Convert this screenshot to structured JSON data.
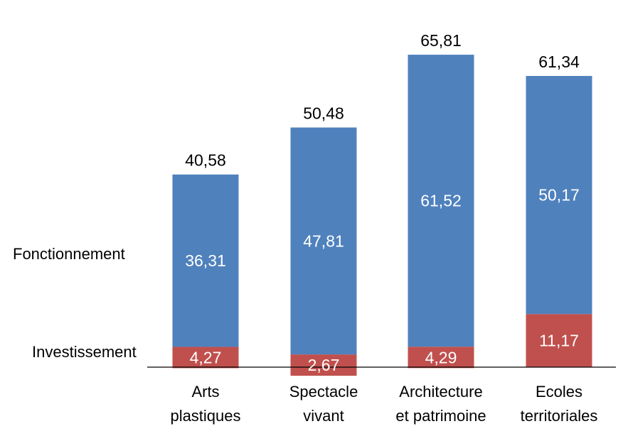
{
  "colors": {
    "fonctionnement": "#4f81bd",
    "investissement": "#c0504d",
    "axis": "#000000"
  },
  "chart_data": {
    "type": "bar",
    "stacked": true,
    "categories": [
      [
        "Arts",
        "plastiques"
      ],
      [
        "Spectacle",
        "vivant"
      ],
      [
        "Architecture",
        "et patrimoine"
      ],
      [
        "Ecoles",
        "territoriales"
      ]
    ],
    "series": [
      {
        "name": "Investissement",
        "values": [
          4.27,
          2.67,
          4.29,
          11.17
        ],
        "labels": [
          "4,27",
          "2,67",
          "4,29",
          "11,17"
        ]
      },
      {
        "name": "Fonctionnement",
        "values": [
          36.31,
          47.81,
          61.52,
          50.17
        ],
        "labels": [
          "36,31",
          "47,81",
          "61,52",
          "50,17"
        ]
      }
    ],
    "totals": [
      40.58,
      50.48,
      65.81,
      61.34
    ],
    "total_labels": [
      "40,58",
      "50,48",
      "65,81",
      "61,34"
    ],
    "ylim": [
      0,
      70
    ],
    "grid": false,
    "legend": "left"
  }
}
